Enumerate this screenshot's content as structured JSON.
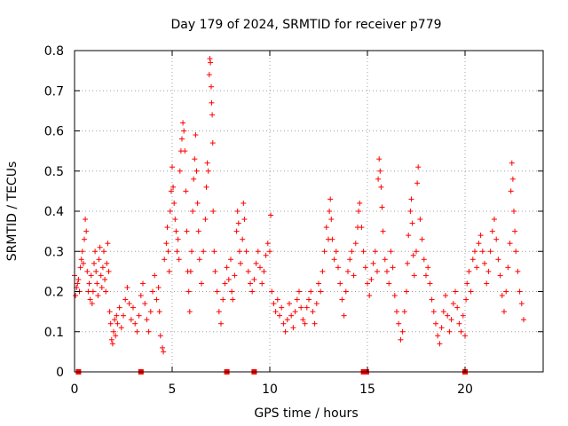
{
  "chart_data": {
    "type": "scatter",
    "title": "Day 179 of 2024, SRMTID for receiver p779",
    "xlabel": "GPS time / hours",
    "ylabel": "SRMTID / TECUs",
    "xlim": [
      0,
      24
    ],
    "ylim": [
      0,
      0.8
    ],
    "grid": true,
    "x_ticks": [
      0,
      5,
      10,
      15,
      20
    ],
    "y_ticks": [
      0,
      0.1,
      0.2,
      0.3,
      0.4,
      0.5,
      0.6,
      0.7,
      0.8
    ],
    "x_tick_labels": [
      "0",
      "5",
      "10",
      "15",
      "20"
    ],
    "y_tick_labels": [
      "0",
      "0.1",
      "0.2",
      "0.3",
      "0.4",
      "0.5",
      "0.6",
      "0.7",
      "0.8"
    ],
    "marker_color": "#ff0000",
    "zero_markers_x": [
      0.2,
      3.4,
      7.8,
      9.2,
      14.8,
      14.95,
      20.0
    ],
    "series": [
      {
        "name": "SRMTID",
        "points": [
          [
            0.0,
            0.24
          ],
          [
            0.05,
            0.19
          ],
          [
            0.1,
            0.21
          ],
          [
            0.15,
            0.22
          ],
          [
            0.2,
            0.23
          ],
          [
            0.25,
            0.2
          ],
          [
            0.3,
            0.26
          ],
          [
            0.35,
            0.28
          ],
          [
            0.4,
            0.3
          ],
          [
            0.45,
            0.27
          ],
          [
            0.5,
            0.33
          ],
          [
            0.55,
            0.38
          ],
          [
            0.6,
            0.35
          ],
          [
            0.65,
            0.25
          ],
          [
            0.7,
            0.2
          ],
          [
            0.75,
            0.22
          ],
          [
            0.8,
            0.18
          ],
          [
            0.85,
            0.24
          ],
          [
            0.9,
            0.17
          ],
          [
            0.95,
            0.2
          ],
          [
            1.0,
            0.27
          ],
          [
            1.05,
            0.3
          ],
          [
            1.1,
            0.25
          ],
          [
            1.15,
            0.22
          ],
          [
            1.2,
            0.19
          ],
          [
            1.25,
            0.28
          ],
          [
            1.3,
            0.31
          ],
          [
            1.35,
            0.24
          ],
          [
            1.4,
            0.21
          ],
          [
            1.45,
            0.26
          ],
          [
            1.5,
            0.3
          ],
          [
            1.55,
            0.23
          ],
          [
            1.6,
            0.2
          ],
          [
            1.65,
            0.27
          ],
          [
            1.7,
            0.32
          ],
          [
            1.75,
            0.25
          ],
          [
            1.8,
            0.15
          ],
          [
            1.85,
            0.12
          ],
          [
            1.9,
            0.08
          ],
          [
            1.95,
            0.07
          ],
          [
            2.0,
            0.1
          ],
          [
            2.05,
            0.13
          ],
          [
            2.1,
            0.09
          ],
          [
            2.15,
            0.14
          ],
          [
            2.2,
            0.12
          ],
          [
            2.3,
            0.16
          ],
          [
            2.4,
            0.11
          ],
          [
            2.5,
            0.14
          ],
          [
            2.6,
            0.18
          ],
          [
            2.7,
            0.21
          ],
          [
            2.8,
            0.17
          ],
          [
            2.9,
            0.13
          ],
          [
            3.0,
            0.16
          ],
          [
            3.1,
            0.12
          ],
          [
            3.2,
            0.1
          ],
          [
            3.3,
            0.14
          ],
          [
            3.4,
            0.19
          ],
          [
            3.5,
            0.22
          ],
          [
            3.6,
            0.17
          ],
          [
            3.7,
            0.13
          ],
          [
            3.8,
            0.1
          ],
          [
            3.9,
            0.15
          ],
          [
            4.0,
            0.2
          ],
          [
            4.1,
            0.24
          ],
          [
            4.2,
            0.18
          ],
          [
            4.3,
            0.21
          ],
          [
            4.35,
            0.15
          ],
          [
            4.4,
            0.09
          ],
          [
            4.5,
            0.06
          ],
          [
            4.55,
            0.05
          ],
          [
            4.6,
            0.28
          ],
          [
            4.7,
            0.32
          ],
          [
            4.75,
            0.36
          ],
          [
            4.8,
            0.3
          ],
          [
            4.85,
            0.25
          ],
          [
            4.9,
            0.4
          ],
          [
            4.95,
            0.45
          ],
          [
            5.0,
            0.51
          ],
          [
            5.05,
            0.46
          ],
          [
            5.1,
            0.42
          ],
          [
            5.15,
            0.38
          ],
          [
            5.2,
            0.35
          ],
          [
            5.25,
            0.3
          ],
          [
            5.3,
            0.33
          ],
          [
            5.35,
            0.28
          ],
          [
            5.4,
            0.5
          ],
          [
            5.45,
            0.55
          ],
          [
            5.5,
            0.58
          ],
          [
            5.55,
            0.62
          ],
          [
            5.6,
            0.6
          ],
          [
            5.65,
            0.55
          ],
          [
            5.7,
            0.45
          ],
          [
            5.75,
            0.35
          ],
          [
            5.8,
            0.25
          ],
          [
            5.85,
            0.2
          ],
          [
            5.9,
            0.15
          ],
          [
            5.95,
            0.25
          ],
          [
            6.0,
            0.3
          ],
          [
            6.05,
            0.4
          ],
          [
            6.1,
            0.48
          ],
          [
            6.15,
            0.53
          ],
          [
            6.2,
            0.59
          ],
          [
            6.25,
            0.5
          ],
          [
            6.3,
            0.42
          ],
          [
            6.35,
            0.35
          ],
          [
            6.4,
            0.28
          ],
          [
            6.5,
            0.22
          ],
          [
            6.6,
            0.3
          ],
          [
            6.7,
            0.38
          ],
          [
            6.75,
            0.46
          ],
          [
            6.8,
            0.52
          ],
          [
            6.85,
            0.5
          ],
          [
            6.9,
            0.74
          ],
          [
            6.93,
            0.78
          ],
          [
            6.96,
            0.77
          ],
          [
            7.0,
            0.71
          ],
          [
            7.02,
            0.67
          ],
          [
            7.05,
            0.64
          ],
          [
            7.08,
            0.57
          ],
          [
            7.1,
            0.4
          ],
          [
            7.15,
            0.3
          ],
          [
            7.2,
            0.25
          ],
          [
            7.3,
            0.2
          ],
          [
            7.4,
            0.15
          ],
          [
            7.5,
            0.12
          ],
          [
            7.6,
            0.18
          ],
          [
            7.7,
            0.22
          ],
          [
            7.8,
            0.26
          ],
          [
            7.9,
            0.23
          ],
          [
            8.0,
            0.28
          ],
          [
            8.05,
            0.2
          ],
          [
            8.1,
            0.18
          ],
          [
            8.2,
            0.24
          ],
          [
            8.3,
            0.35
          ],
          [
            8.35,
            0.4
          ],
          [
            8.4,
            0.37
          ],
          [
            8.45,
            0.3
          ],
          [
            8.5,
            0.27
          ],
          [
            8.6,
            0.33
          ],
          [
            8.65,
            0.42
          ],
          [
            8.7,
            0.38
          ],
          [
            8.8,
            0.3
          ],
          [
            8.9,
            0.25
          ],
          [
            9.0,
            0.22
          ],
          [
            9.1,
            0.2
          ],
          [
            9.2,
            0.23
          ],
          [
            9.3,
            0.27
          ],
          [
            9.4,
            0.3
          ],
          [
            9.5,
            0.26
          ],
          [
            9.6,
            0.22
          ],
          [
            9.7,
            0.25
          ],
          [
            9.8,
            0.29
          ],
          [
            9.9,
            0.32
          ],
          [
            10.0,
            0.3
          ],
          [
            10.05,
            0.39
          ],
          [
            10.1,
            0.2
          ],
          [
            10.2,
            0.17
          ],
          [
            10.3,
            0.15
          ],
          [
            10.4,
            0.18
          ],
          [
            10.5,
            0.14
          ],
          [
            10.6,
            0.16
          ],
          [
            10.7,
            0.12
          ],
          [
            10.8,
            0.1
          ],
          [
            10.9,
            0.13
          ],
          [
            11.0,
            0.17
          ],
          [
            11.1,
            0.14
          ],
          [
            11.2,
            0.11
          ],
          [
            11.3,
            0.15
          ],
          [
            11.4,
            0.18
          ],
          [
            11.5,
            0.2
          ],
          [
            11.6,
            0.16
          ],
          [
            11.7,
            0.13
          ],
          [
            11.8,
            0.12
          ],
          [
            11.9,
            0.16
          ],
          [
            12.0,
            0.18
          ],
          [
            12.1,
            0.2
          ],
          [
            12.2,
            0.15
          ],
          [
            12.3,
            0.12
          ],
          [
            12.4,
            0.17
          ],
          [
            12.5,
            0.22
          ],
          [
            12.6,
            0.2
          ],
          [
            12.7,
            0.25
          ],
          [
            12.8,
            0.3
          ],
          [
            12.9,
            0.36
          ],
          [
            13.0,
            0.33
          ],
          [
            13.05,
            0.4
          ],
          [
            13.1,
            0.43
          ],
          [
            13.15,
            0.38
          ],
          [
            13.2,
            0.33
          ],
          [
            13.3,
            0.28
          ],
          [
            13.4,
            0.3
          ],
          [
            13.5,
            0.26
          ],
          [
            13.6,
            0.22
          ],
          [
            13.7,
            0.18
          ],
          [
            13.8,
            0.14
          ],
          [
            13.9,
            0.2
          ],
          [
            14.0,
            0.25
          ],
          [
            14.1,
            0.28
          ],
          [
            14.2,
            0.3
          ],
          [
            14.3,
            0.24
          ],
          [
            14.4,
            0.32
          ],
          [
            14.5,
            0.36
          ],
          [
            14.55,
            0.4
          ],
          [
            14.6,
            0.42
          ],
          [
            14.7,
            0.36
          ],
          [
            14.8,
            0.3
          ],
          [
            14.9,
            0.26
          ],
          [
            15.0,
            0.22
          ],
          [
            15.1,
            0.19
          ],
          [
            15.2,
            0.23
          ],
          [
            15.3,
            0.27
          ],
          [
            15.4,
            0.3
          ],
          [
            15.5,
            0.25
          ],
          [
            15.55,
            0.48
          ],
          [
            15.6,
            0.53
          ],
          [
            15.65,
            0.5
          ],
          [
            15.7,
            0.46
          ],
          [
            15.75,
            0.41
          ],
          [
            15.8,
            0.35
          ],
          [
            15.9,
            0.28
          ],
          [
            16.0,
            0.25
          ],
          [
            16.1,
            0.22
          ],
          [
            16.2,
            0.3
          ],
          [
            16.3,
            0.26
          ],
          [
            16.4,
            0.19
          ],
          [
            16.5,
            0.15
          ],
          [
            16.6,
            0.12
          ],
          [
            16.7,
            0.08
          ],
          [
            16.8,
            0.1
          ],
          [
            16.9,
            0.15
          ],
          [
            17.0,
            0.2
          ],
          [
            17.05,
            0.27
          ],
          [
            17.1,
            0.34
          ],
          [
            17.2,
            0.4
          ],
          [
            17.25,
            0.43
          ],
          [
            17.3,
            0.37
          ],
          [
            17.35,
            0.29
          ],
          [
            17.4,
            0.24
          ],
          [
            17.5,
            0.3
          ],
          [
            17.55,
            0.47
          ],
          [
            17.6,
            0.51
          ],
          [
            17.7,
            0.38
          ],
          [
            17.8,
            0.33
          ],
          [
            17.9,
            0.28
          ],
          [
            18.0,
            0.24
          ],
          [
            18.1,
            0.26
          ],
          [
            18.2,
            0.22
          ],
          [
            18.3,
            0.18
          ],
          [
            18.4,
            0.15
          ],
          [
            18.5,
            0.12
          ],
          [
            18.6,
            0.09
          ],
          [
            18.7,
            0.07
          ],
          [
            18.8,
            0.11
          ],
          [
            18.9,
            0.15
          ],
          [
            19.0,
            0.19
          ],
          [
            19.1,
            0.14
          ],
          [
            19.2,
            0.1
          ],
          [
            19.3,
            0.13
          ],
          [
            19.4,
            0.17
          ],
          [
            19.5,
            0.2
          ],
          [
            19.6,
            0.16
          ],
          [
            19.7,
            0.12
          ],
          [
            19.8,
            0.1
          ],
          [
            19.9,
            0.14
          ],
          [
            20.0,
            0.09
          ],
          [
            20.05,
            0.18
          ],
          [
            20.1,
            0.22
          ],
          [
            20.2,
            0.25
          ],
          [
            20.3,
            0.2
          ],
          [
            20.4,
            0.28
          ],
          [
            20.5,
            0.3
          ],
          [
            20.6,
            0.26
          ],
          [
            20.7,
            0.32
          ],
          [
            20.8,
            0.34
          ],
          [
            20.9,
            0.3
          ],
          [
            21.0,
            0.27
          ],
          [
            21.1,
            0.22
          ],
          [
            21.2,
            0.25
          ],
          [
            21.3,
            0.3
          ],
          [
            21.4,
            0.35
          ],
          [
            21.5,
            0.38
          ],
          [
            21.6,
            0.33
          ],
          [
            21.7,
            0.28
          ],
          [
            21.8,
            0.24
          ],
          [
            21.9,
            0.19
          ],
          [
            22.0,
            0.15
          ],
          [
            22.1,
            0.2
          ],
          [
            22.2,
            0.26
          ],
          [
            22.3,
            0.32
          ],
          [
            22.35,
            0.45
          ],
          [
            22.4,
            0.52
          ],
          [
            22.45,
            0.48
          ],
          [
            22.5,
            0.4
          ],
          [
            22.55,
            0.35
          ],
          [
            22.6,
            0.3
          ],
          [
            22.7,
            0.25
          ],
          [
            22.8,
            0.2
          ],
          [
            22.9,
            0.17
          ],
          [
            23.0,
            0.13
          ]
        ]
      }
    ]
  }
}
